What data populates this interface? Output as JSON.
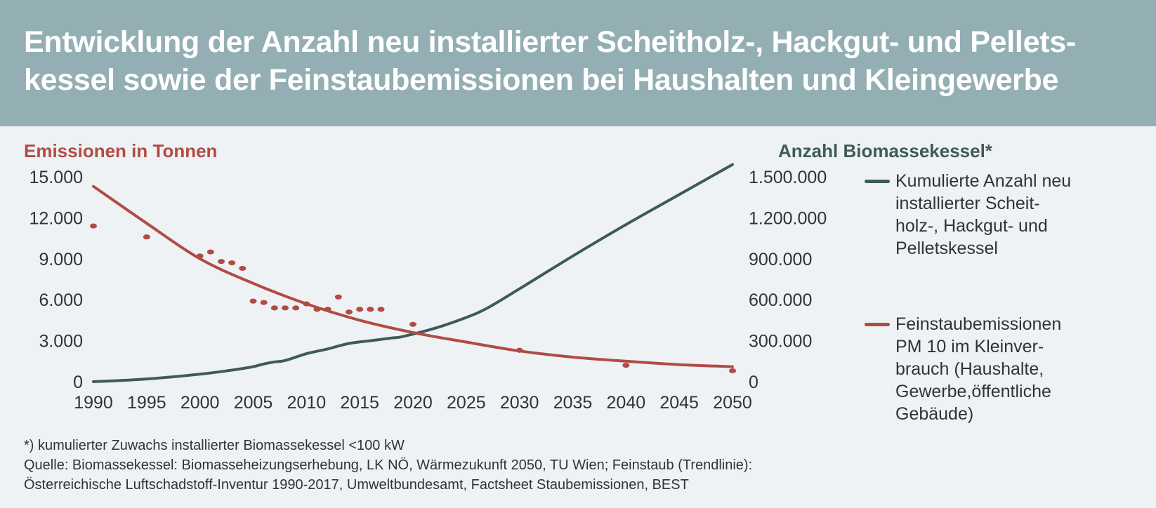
{
  "title": {
    "line1": "Entwicklung der Anzahl neu installierter Scheitholz-, Hackgut- und Pellets-",
    "line2": "kessel sowie der Feinstaubemissionen bei Haushalten und Kleingewerbe"
  },
  "footnotes": {
    "asterisk": "*) kumulierter Zuwachs installierter Biomassekessel <100 kW",
    "source1": "Quelle: Biomassekessel: Biomasseheizungserhebung, LK NÖ, Wärmezukunft 2050, TU Wien; Feinstaub (Trendlinie):",
    "source2": "Österreichische Luftschadstoff-Inventur 1990-2017, Umweltbundesamt, Factsheet Staubemissionen, BEST"
  },
  "colors": {
    "header_bg": "#94afb4",
    "emissions": "#b04c44",
    "boilers": "#3f5a5a"
  },
  "chart_data": {
    "type": "line",
    "xlabel": "",
    "ylabel_left": "Emissionen in Tonnen",
    "ylabel_right": "Anzahl Biomassekessel*",
    "x_ticks": [
      "1990",
      "1995",
      "2000",
      "2005",
      "2010",
      "2015",
      "2020",
      "2025",
      "2030",
      "2035",
      "2040",
      "2045",
      "2050"
    ],
    "y_left_ticks": [
      "0",
      "3.000",
      "6.000",
      "9.000",
      "12.000",
      "15.000"
    ],
    "y_right_ticks": [
      "0",
      "300.000",
      "600.000",
      "900.000",
      "1.200.000",
      "1.500.000"
    ],
    "xlim": [
      1990,
      2050
    ],
    "ylim_left": [
      0,
      15000
    ],
    "ylim_right": [
      0,
      1500000
    ],
    "grid": false,
    "legend_position": "right",
    "series": [
      {
        "name": "Kumulierte Anzahl neu installierter Scheit-\nholz-, Hackgut- und\nPelletskessel",
        "axis": "right",
        "style": "line",
        "color": "#3f5a5a",
        "points": [
          [
            1990,
            0
          ],
          [
            1995,
            20000
          ],
          [
            2000,
            55000
          ],
          [
            2003,
            85000
          ],
          [
            2005,
            110000
          ],
          [
            2006,
            130000
          ],
          [
            2007,
            145000
          ],
          [
            2008,
            155000
          ],
          [
            2010,
            205000
          ],
          [
            2012,
            240000
          ],
          [
            2014,
            280000
          ],
          [
            2016,
            300000
          ],
          [
            2018,
            320000
          ],
          [
            2019,
            330000
          ],
          [
            2022,
            390000
          ],
          [
            2025,
            470000
          ],
          [
            2027,
            540000
          ],
          [
            2030,
            680000
          ],
          [
            2035,
            920000
          ],
          [
            2040,
            1150000
          ],
          [
            2045,
            1370000
          ],
          [
            2050,
            1590000
          ]
        ]
      },
      {
        "name": "Feinstaubemissionen\nPM 10 im Kleinver-\nbrauch (Haushalte,\nGewerbe,öffentliche\nGebäude)",
        "axis": "left",
        "style": "line",
        "color": "#b04c44",
        "points": [
          [
            1990,
            14300
          ],
          [
            1995,
            11600
          ],
          [
            2000,
            9000
          ],
          [
            2005,
            7200
          ],
          [
            2010,
            5700
          ],
          [
            2015,
            4500
          ],
          [
            2020,
            3600
          ],
          [
            2025,
            2900
          ],
          [
            2030,
            2250
          ],
          [
            2035,
            1800
          ],
          [
            2040,
            1500
          ],
          [
            2045,
            1250
          ],
          [
            2050,
            1100
          ]
        ]
      },
      {
        "name": "",
        "axis": "left",
        "style": "scatter",
        "color": "#b04c44",
        "points": [
          [
            1990,
            11400
          ],
          [
            1995,
            10600
          ],
          [
            2000,
            9200
          ],
          [
            2001,
            9500
          ],
          [
            2002,
            8800
          ],
          [
            2003,
            8700
          ],
          [
            2004,
            8300
          ],
          [
            2005,
            5900
          ],
          [
            2006,
            5800
          ],
          [
            2007,
            5400
          ],
          [
            2008,
            5400
          ],
          [
            2009,
            5400
          ],
          [
            2010,
            5700
          ],
          [
            2011,
            5300
          ],
          [
            2012,
            5300
          ],
          [
            2013,
            6200
          ],
          [
            2014,
            5100
          ],
          [
            2015,
            5300
          ],
          [
            2016,
            5300
          ],
          [
            2017,
            5300
          ],
          [
            2020,
            4200
          ],
          [
            2030,
            2300
          ],
          [
            2040,
            1200
          ],
          [
            2050,
            800
          ]
        ]
      }
    ]
  }
}
